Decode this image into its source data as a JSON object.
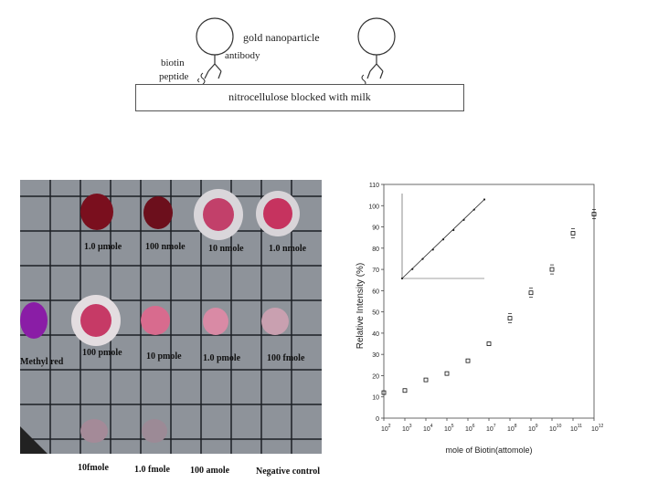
{
  "schematic": {
    "gold_label": "gold nanoparticle",
    "antibody_label": "antibody",
    "biotin_label": "biotin",
    "peptide_label": "peptide",
    "strip_label": "nitrocellulose blocked with milk"
  },
  "membrane": {
    "row1_labels": [
      "1.0 μmole",
      "100 nmole",
      "10 nmole",
      "1.0 nmole"
    ],
    "row2_labels": [
      "Methyl red",
      "100 pmole",
      "10 pmole",
      "1.0 pmole",
      "100 fmole"
    ],
    "bottom_labels": [
      "10fmole",
      "1.0 fmole",
      "100 amole",
      "Negative control"
    ]
  },
  "chart_data": {
    "type": "scatter",
    "xlabel": "mole of Biotin(attomole)",
    "ylabel": "Relative Intensity (%)",
    "ylim": [
      0,
      110
    ],
    "yticks": [
      "0",
      "10",
      "20",
      "30",
      "40",
      "50",
      "60",
      "70",
      "80",
      "90",
      "100",
      "110"
    ],
    "xscale": "log",
    "xlim_exponent": [
      2,
      12
    ],
    "xtick_exponents": [
      2,
      3,
      4,
      5,
      6,
      7,
      8,
      9,
      10,
      11,
      12
    ],
    "series": [
      {
        "x_exponent": [
          2,
          3,
          4,
          5,
          6,
          7,
          8,
          9,
          10,
          11,
          12
        ],
        "y": [
          12,
          13,
          18,
          21,
          27,
          35,
          47,
          59,
          70,
          87,
          96
        ]
      }
    ],
    "inset": {
      "type": "line",
      "x_fraction": [
        0,
        0.125,
        0.25,
        0.375,
        0.5,
        0.625,
        0.75,
        0.875,
        1.0
      ],
      "y_fraction": [
        0.0,
        0.11,
        0.23,
        0.34,
        0.46,
        0.57,
        0.69,
        0.81,
        0.93
      ]
    }
  }
}
